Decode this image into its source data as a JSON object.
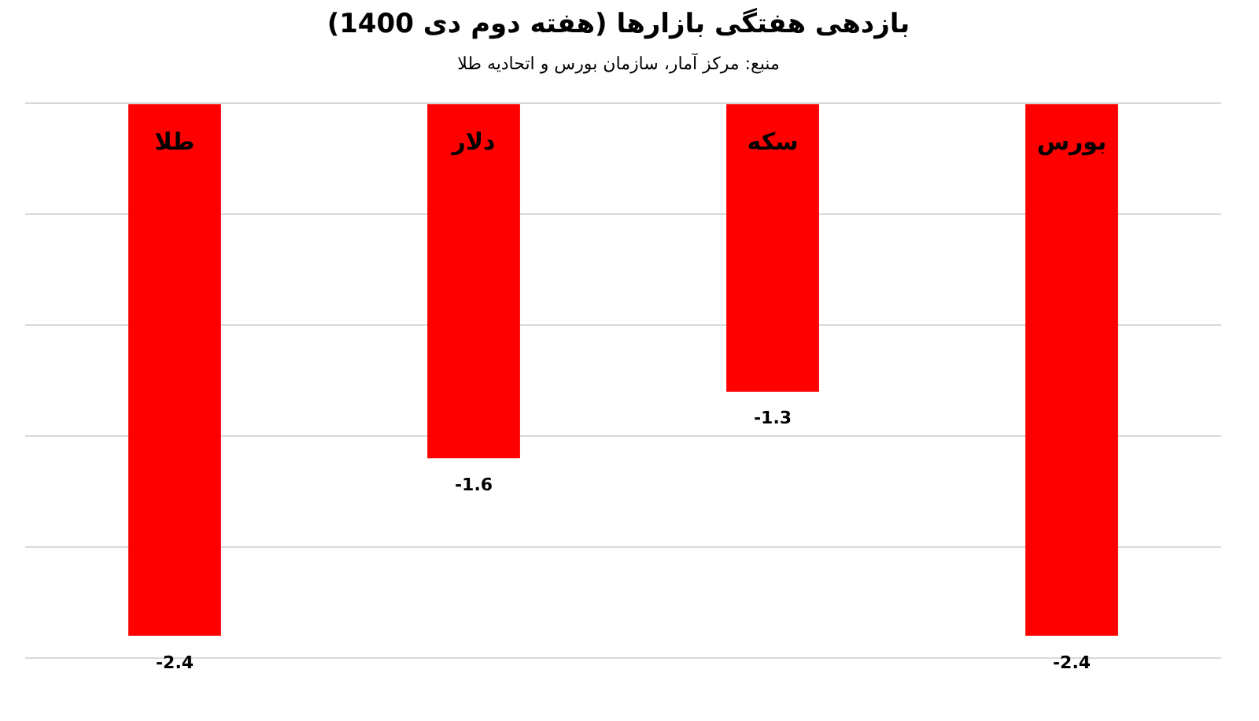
{
  "chart_data": {
    "type": "bar",
    "title": "بازدهی هفتگی بازارها (هفته دوم دی 1400)",
    "annotations": [
      "منبع: مرکز آمار، سازمان بورس و اتحادیه طلا"
    ],
    "categories": [
      "طلا",
      "دلار",
      "سکه",
      "بورس"
    ],
    "values": [
      -2.4,
      -1.6,
      -1.3,
      -2.4
    ],
    "color": "#ff0000",
    "ylim": [
      -2.5,
      0
    ],
    "yticks": [
      {
        "value": -2.5,
        "label": null
      },
      {
        "value": -2,
        "label": null
      },
      {
        "value": -1.5,
        "label": null
      },
      {
        "value": -1,
        "label": null
      },
      {
        "value": -0.5,
        "label": null
      },
      {
        "value": 0,
        "label": null
      }
    ],
    "grid": "y",
    "data_labels": true
  }
}
